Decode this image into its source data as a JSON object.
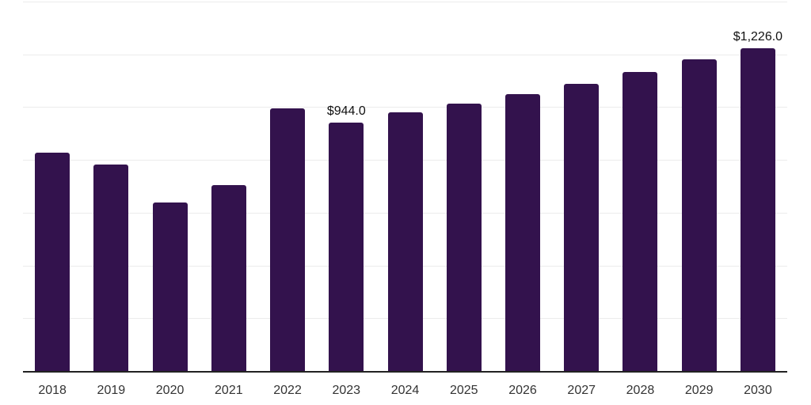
{
  "chart_data": {
    "type": "bar",
    "title": "",
    "xlabel": "",
    "ylabel": "",
    "categories": [
      "2018",
      "2019",
      "2020",
      "2021",
      "2022",
      "2023",
      "2024",
      "2025",
      "2026",
      "2027",
      "2028",
      "2029",
      "2030"
    ],
    "values": [
      830,
      784,
      641,
      709,
      997,
      944,
      983,
      1016,
      1052,
      1091,
      1136,
      1184,
      1226
    ],
    "value_labels": [
      {
        "category": "2023",
        "text": "$944.0"
      },
      {
        "category": "2030",
        "text": "$1,226.0"
      }
    ],
    "ylim": [
      0,
      1400
    ],
    "ytick_step": 200,
    "grid": true,
    "legend": "none",
    "colors": {
      "bar": "#33124d",
      "gridline": "#ececec",
      "axis_line": "#222222",
      "tick_label": "#333333",
      "value_label": "#111111",
      "background": "#ffffff"
    }
  }
}
